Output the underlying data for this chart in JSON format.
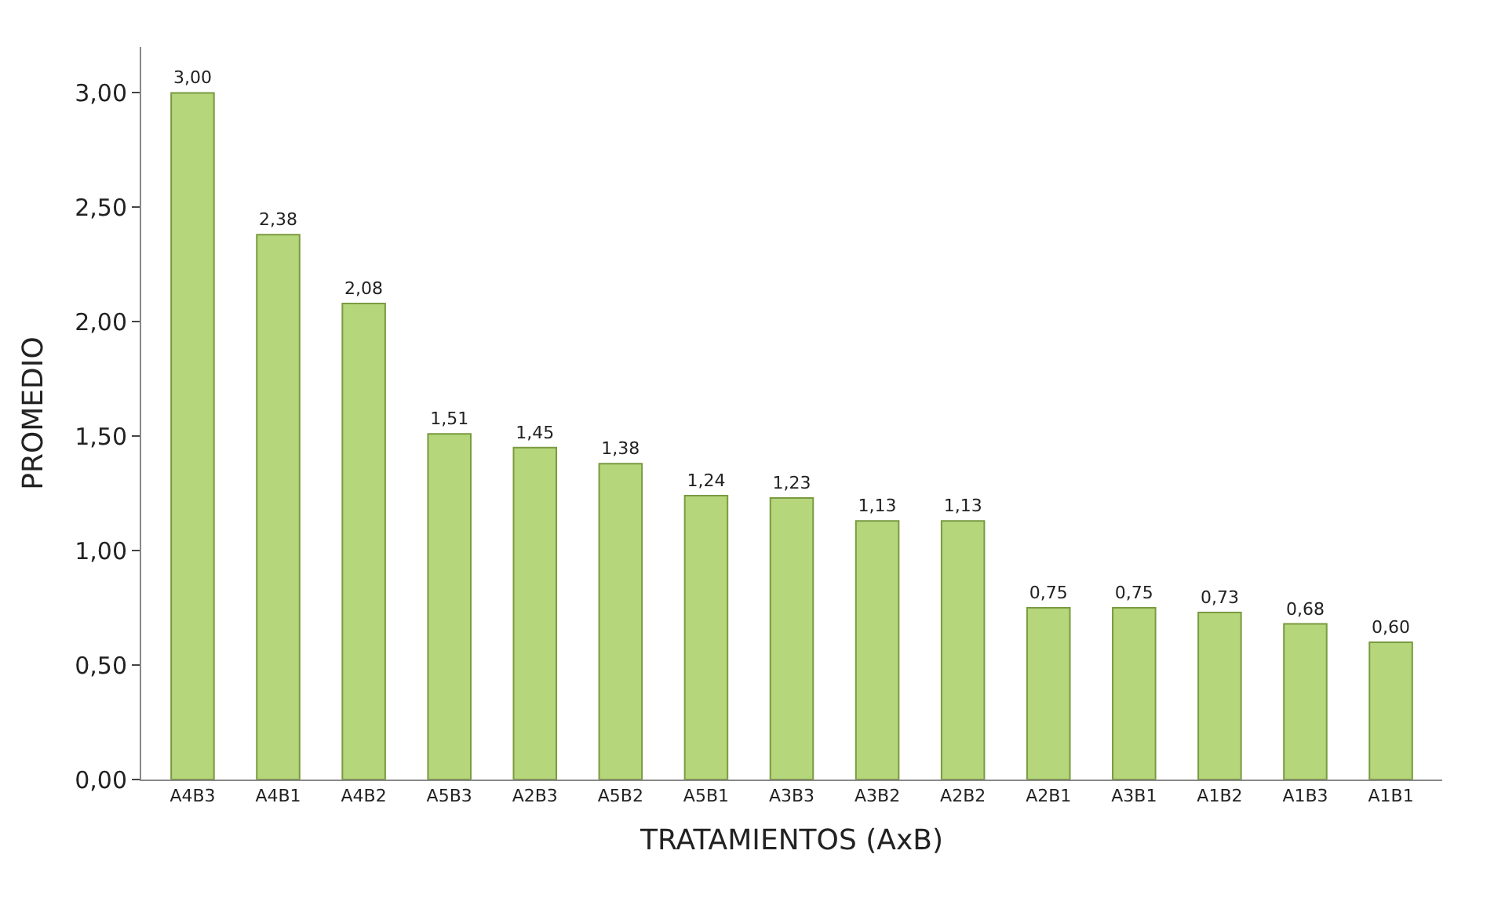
{
  "chart_data": {
    "type": "bar",
    "xlabel": "TRATAMIENTOS (AxB)",
    "ylabel": "PROMEDIO",
    "categories": [
      "A4B3",
      "A4B1",
      "A4B2",
      "A5B3",
      "A2B3",
      "A5B2",
      "A5B1",
      "A3B3",
      "A3B2",
      "A2B2",
      "A2B1",
      "A3B1",
      "A1B2",
      "A1B3",
      "A1B1"
    ],
    "values": [
      3.0,
      2.38,
      2.08,
      1.51,
      1.45,
      1.38,
      1.24,
      1.23,
      1.13,
      1.13,
      0.75,
      0.75,
      0.73,
      0.68,
      0.6
    ],
    "value_labels": [
      "3,00",
      "2,38",
      "2,08",
      "1,51",
      "1,45",
      "1,38",
      "1,24",
      "1,23",
      "1,13",
      "1,13",
      "0,75",
      "0,75",
      "0,73",
      "0,68",
      "0,60"
    ],
    "color": "#b5d67a",
    "ylim": [
      0,
      3.2
    ],
    "yticks": [
      {
        "value": 0,
        "label": "0,00"
      },
      {
        "value": 0.5,
        "label": "0,50"
      },
      {
        "value": 1,
        "label": "1,00"
      },
      {
        "value": 1.5,
        "label": "1,50"
      },
      {
        "value": 2,
        "label": "2,00"
      },
      {
        "value": 2.5,
        "label": "2,50"
      },
      {
        "value": 3,
        "label": "3,00"
      }
    ],
    "data_labels": false
  }
}
